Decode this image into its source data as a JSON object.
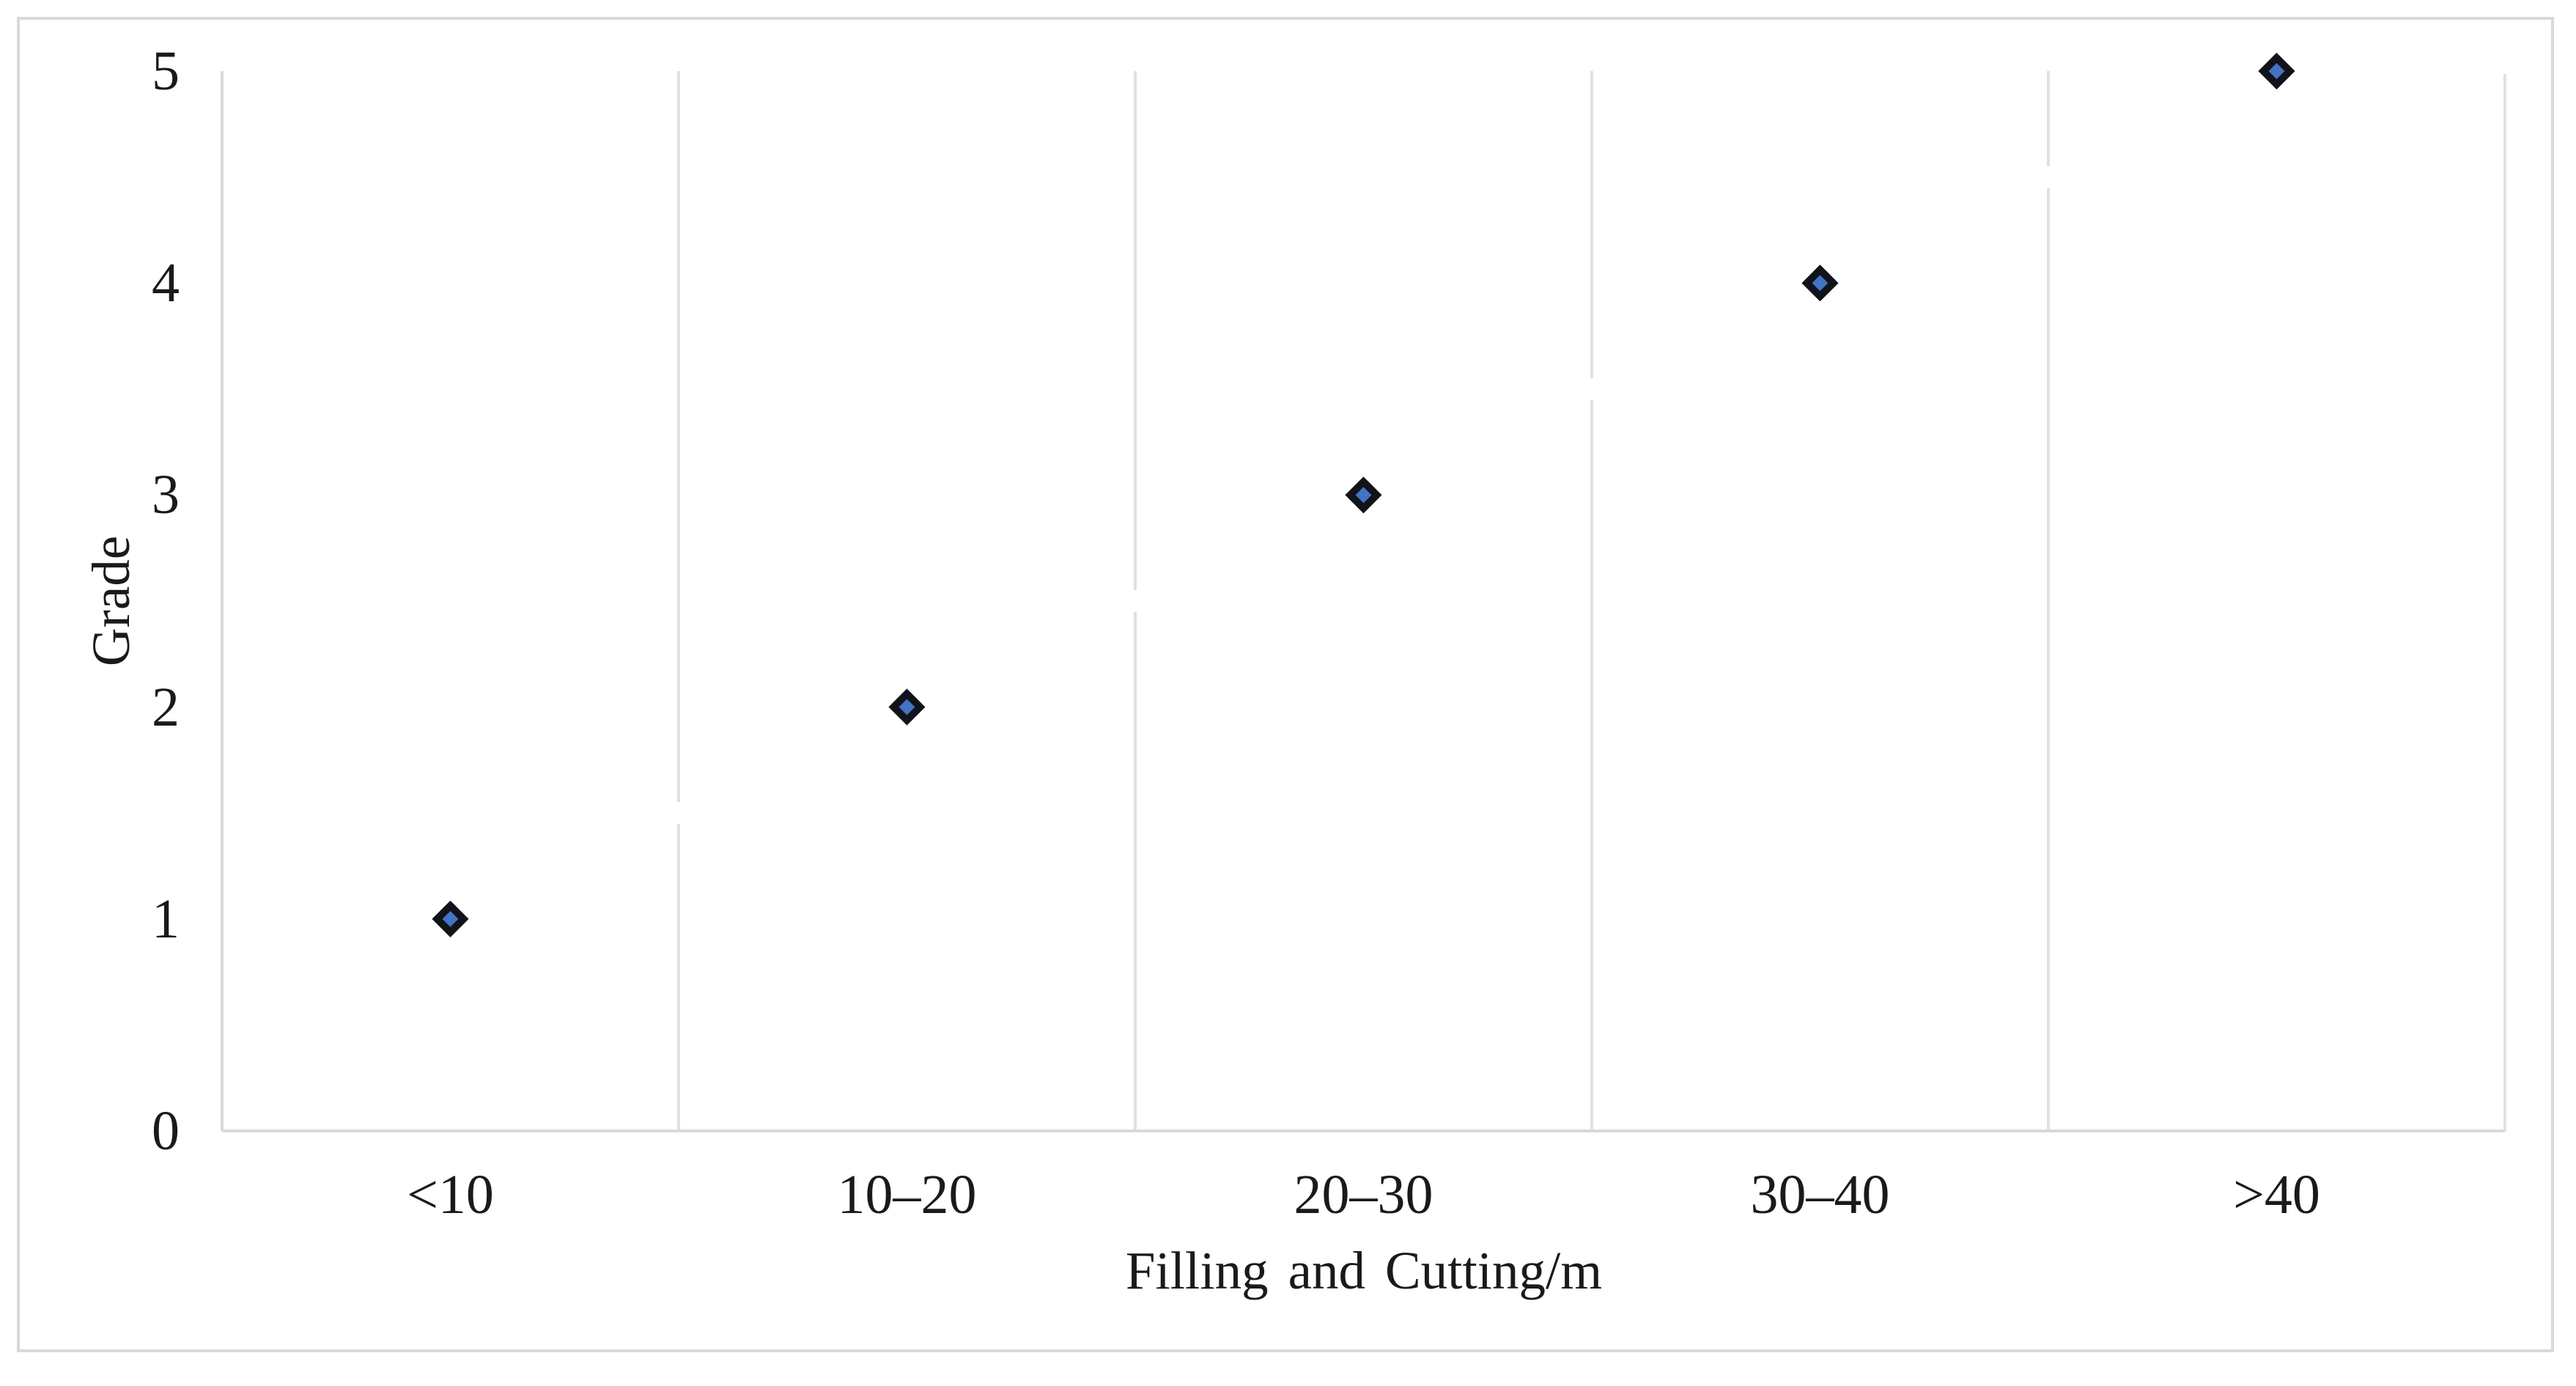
{
  "figure": {
    "background": "#ffffff",
    "border_color": "#d9d9d9"
  },
  "chart_data": {
    "type": "scatter",
    "title": "",
    "xlabel": "Filling and Cutting/m",
    "ylabel": "Grade",
    "categories": [
      "<10",
      "10–20",
      "20–30",
      "30–40",
      ">40"
    ],
    "values": [
      1,
      2,
      3,
      4,
      5
    ],
    "yticks": [
      0,
      1,
      2,
      3,
      4,
      5
    ],
    "ylim": [
      0,
      5
    ],
    "grid": "vertical-category-boundaries-only",
    "gridline_gaps_at_half_grades": [
      1.5,
      2.5,
      3.5,
      4.5
    ],
    "legend_position": "none",
    "marker": {
      "shape": "diamond",
      "fill": "#4472c4",
      "stroke": "#10141a"
    },
    "colors": {
      "gridline": "#e0e0e0",
      "axis_line": "#d9d9d9",
      "text": "#1a1a1a"
    }
  }
}
